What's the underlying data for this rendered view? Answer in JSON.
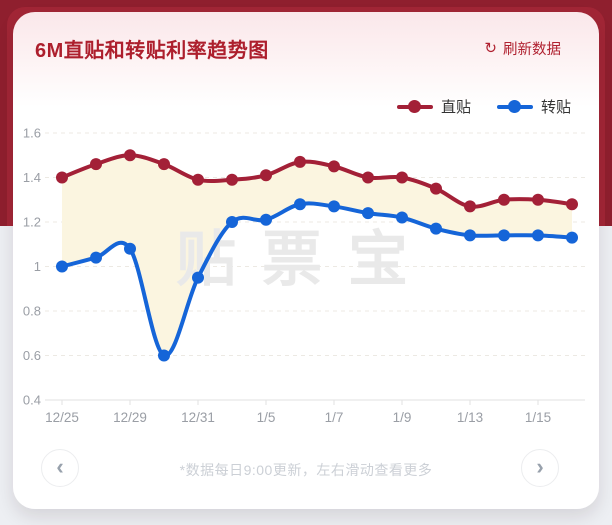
{
  "header": {
    "title": "6M直贴和转贴利率趋势图",
    "refresh": {
      "icon": "↻",
      "label": "刷新数据"
    }
  },
  "footer": {
    "note": "*数据每日9:00更新，左右滑动查看更多",
    "prev_icon": "‹",
    "next_icon": "›"
  },
  "colors": {
    "banner_red": "#8f1f2e",
    "title_red": "#ad1f2d",
    "line_red": "#a32037",
    "line_blue": "#1565d8",
    "page_gray": "#edeff3"
  },
  "chart_data": {
    "type": "line",
    "smooth": true,
    "categories": [
      "12/25",
      "",
      "12/29",
      "",
      "12/31",
      "",
      "1/5",
      "",
      "1/7",
      "",
      "1/9",
      "",
      "1/13",
      "",
      "1/15",
      ""
    ],
    "series": [
      {
        "name": "直贴",
        "color": "#a32037",
        "values": [
          1.4,
          1.46,
          1.5,
          1.46,
          1.39,
          1.39,
          1.41,
          1.47,
          1.45,
          1.4,
          1.4,
          1.35,
          1.27,
          1.3,
          1.3,
          1.28
        ]
      },
      {
        "name": "转贴",
        "color": "#1565d8",
        "values": [
          1.0,
          1.04,
          1.08,
          0.6,
          0.95,
          1.2,
          1.21,
          1.28,
          1.27,
          1.24,
          1.22,
          1.17,
          1.14,
          1.14,
          1.14,
          1.13
        ]
      }
    ],
    "y_ticks": [
      1.6,
      1.4,
      1.2,
      1,
      0.8,
      0.6,
      0.4
    ],
    "ylim": [
      0.4,
      1.6
    ],
    "xlabel": "",
    "ylabel": "",
    "grid": "dashed-horizontal",
    "legend_position": "top-right",
    "fill_between": "#fbf5e0",
    "watermark": "贴票宝"
  }
}
